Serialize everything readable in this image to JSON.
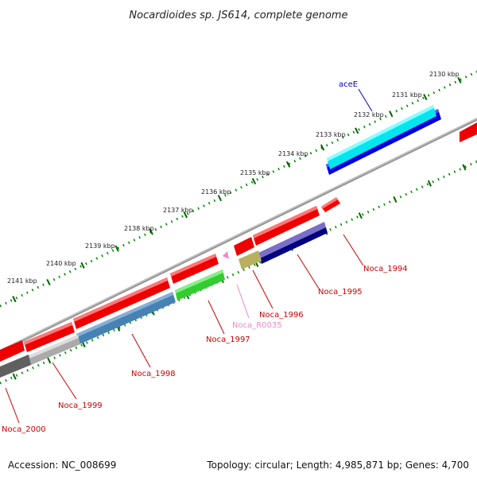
{
  "title": "Nocardioides sp. JS614, complete genome",
  "footer": {
    "accession": "Accession: NC_008699",
    "summary": "Topology: circular; Length: 4,985,871 bp; Genes: 4,700"
  },
  "ticks": [
    "2130 kbp",
    "2131 kbp",
    "2132 kbp",
    "2133 kbp",
    "2134 kbp",
    "2135 kbp",
    "2136 kbp",
    "2137 kbp",
    "2138 kbp",
    "2139 kbp",
    "2140 kbp",
    "2141 kbp"
  ],
  "genes": [
    {
      "name": "aceE",
      "color": "#0000cc"
    },
    {
      "name": "Noca_1994",
      "color": "#cc0000"
    },
    {
      "name": "Noca_1995",
      "color": "#cc0000"
    },
    {
      "name": "Noca_1996",
      "color": "#cc0000"
    },
    {
      "name": "Noca_R0035",
      "color": "#ee88cc"
    },
    {
      "name": "Noca_1997",
      "color": "#cc0000"
    },
    {
      "name": "Noca_1998",
      "color": "#cc0000"
    },
    {
      "name": "Noca_1999",
      "color": "#cc0000"
    },
    {
      "name": "Noca_2000",
      "color": "#cc0000"
    }
  ],
  "colors": {
    "cds_forward": "#ff0000",
    "cds_reverse": "#ff0000",
    "aceE_forward": "#0000ff",
    "aceE_other": "#00e5ee",
    "blast_purple": "#7a6ec8",
    "blast_navy": "#000080",
    "blast_olive": "#b8b060",
    "blast_green": "#33cc33",
    "blast_steel": "#4682b4",
    "blast_gray": "#a9a9a9",
    "blast_dark": "#555555",
    "backbone": "#808080",
    "tick_major": "#006600",
    "tick_minor": "#008800"
  }
}
